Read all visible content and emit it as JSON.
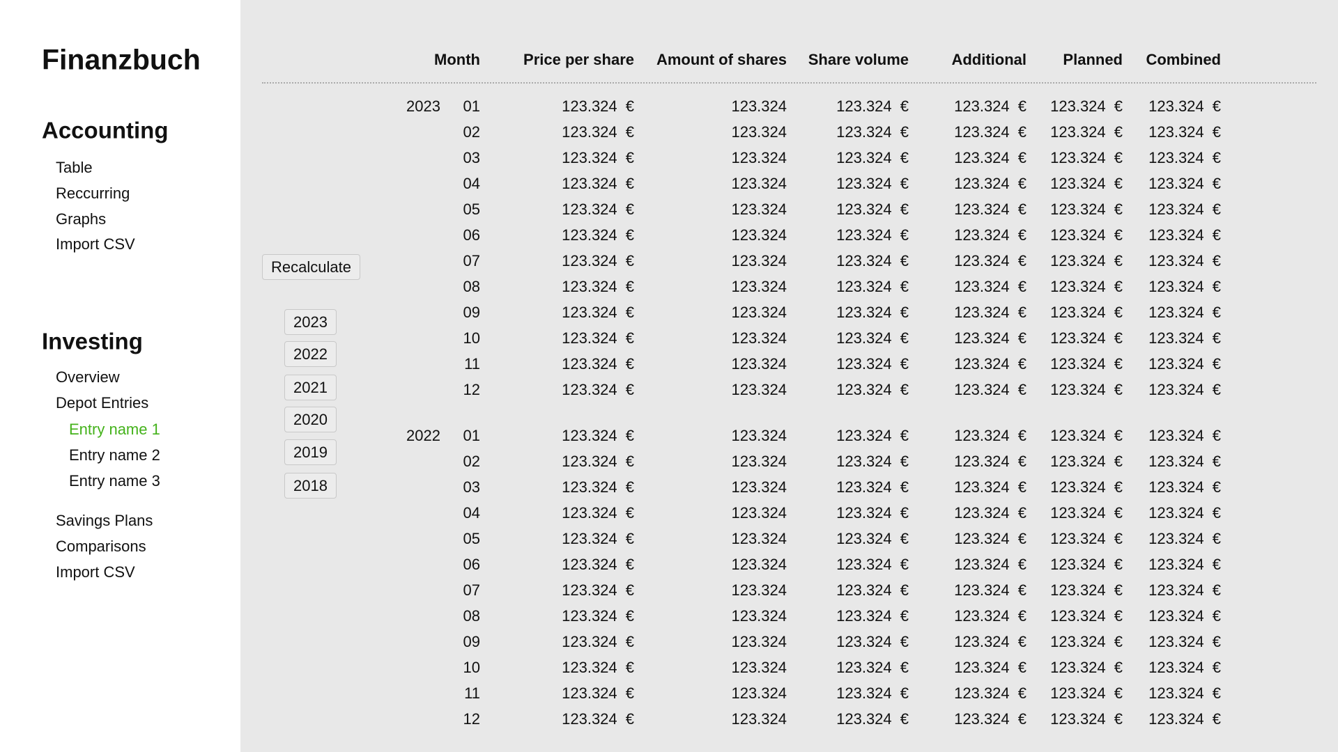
{
  "sidebar": {
    "title": "Finanzbuch",
    "sections": [
      {
        "heading": "Accounting",
        "items": [
          {
            "label": "Table"
          },
          {
            "label": "Reccurring"
          },
          {
            "label": "Graphs"
          },
          {
            "label": "Import CSV"
          }
        ]
      },
      {
        "heading": "Investing",
        "items": [
          {
            "label": "Overview"
          },
          {
            "label": "Depot Entries"
          },
          {
            "label": "Entry name 1"
          },
          {
            "label": "Entry name 2"
          },
          {
            "label": "Entry name 3"
          },
          {
            "label": "Savings Plans"
          },
          {
            "label": "Comparisons"
          },
          {
            "label": "Import CSV"
          }
        ]
      }
    ]
  },
  "controls": {
    "recalculate": "Recalculate",
    "years": [
      "2023",
      "2022",
      "2021",
      "2020",
      "2019",
      "2018"
    ]
  },
  "table": {
    "columns": [
      "Month",
      "Price per share",
      "Amount of shares",
      "Share volume",
      "Additional",
      "Planned",
      "Combined"
    ],
    "groups": [
      {
        "year": "2023",
        "rows": [
          {
            "month": "01",
            "cells": [
              "123.324 €",
              "123.324",
              "123.324 €",
              "123.324 €",
              "123.324 €",
              "123.324 €"
            ]
          },
          {
            "month": "02",
            "cells": [
              "123.324 €",
              "123.324",
              "123.324 €",
              "123.324 €",
              "123.324 €",
              "123.324 €"
            ]
          },
          {
            "month": "03",
            "cells": [
              "123.324 €",
              "123.324",
              "123.324 €",
              "123.324 €",
              "123.324 €",
              "123.324 €"
            ]
          },
          {
            "month": "04",
            "cells": [
              "123.324 €",
              "123.324",
              "123.324 €",
              "123.324 €",
              "123.324 €",
              "123.324 €"
            ]
          },
          {
            "month": "05",
            "cells": [
              "123.324 €",
              "123.324",
              "123.324 €",
              "123.324 €",
              "123.324 €",
              "123.324 €"
            ]
          },
          {
            "month": "06",
            "cells": [
              "123.324 €",
              "123.324",
              "123.324 €",
              "123.324 €",
              "123.324 €",
              "123.324 €"
            ]
          },
          {
            "month": "07",
            "cells": [
              "123.324 €",
              "123.324",
              "123.324 €",
              "123.324 €",
              "123.324 €",
              "123.324 €"
            ]
          },
          {
            "month": "08",
            "cells": [
              "123.324 €",
              "123.324",
              "123.324 €",
              "123.324 €",
              "123.324 €",
              "123.324 €"
            ]
          },
          {
            "month": "09",
            "cells": [
              "123.324 €",
              "123.324",
              "123.324 €",
              "123.324 €",
              "123.324 €",
              "123.324 €"
            ]
          },
          {
            "month": "10",
            "cells": [
              "123.324 €",
              "123.324",
              "123.324 €",
              "123.324 €",
              "123.324 €",
              "123.324 €"
            ]
          },
          {
            "month": "11",
            "cells": [
              "123.324 €",
              "123.324",
              "123.324 €",
              "123.324 €",
              "123.324 €",
              "123.324 €"
            ]
          },
          {
            "month": "12",
            "cells": [
              "123.324 €",
              "123.324",
              "123.324 €",
              "123.324 €",
              "123.324 €",
              "123.324 €"
            ]
          }
        ]
      },
      {
        "year": "2022",
        "rows": [
          {
            "month": "01",
            "cells": [
              "123.324 €",
              "123.324",
              "123.324 €",
              "123.324 €",
              "123.324 €",
              "123.324 €"
            ]
          },
          {
            "month": "02",
            "cells": [
              "123.324 €",
              "123.324",
              "123.324 €",
              "123.324 €",
              "123.324 €",
              "123.324 €"
            ]
          },
          {
            "month": "03",
            "cells": [
              "123.324 €",
              "123.324",
              "123.324 €",
              "123.324 €",
              "123.324 €",
              "123.324 €"
            ]
          },
          {
            "month": "04",
            "cells": [
              "123.324 €",
              "123.324",
              "123.324 €",
              "123.324 €",
              "123.324 €",
              "123.324 €"
            ]
          },
          {
            "month": "05",
            "cells": [
              "123.324 €",
              "123.324",
              "123.324 €",
              "123.324 €",
              "123.324 €",
              "123.324 €"
            ]
          },
          {
            "month": "06",
            "cells": [
              "123.324 €",
              "123.324",
              "123.324 €",
              "123.324 €",
              "123.324 €",
              "123.324 €"
            ]
          },
          {
            "month": "07",
            "cells": [
              "123.324 €",
              "123.324",
              "123.324 €",
              "123.324 €",
              "123.324 €",
              "123.324 €"
            ]
          },
          {
            "month": "08",
            "cells": [
              "123.324 €",
              "123.324",
              "123.324 €",
              "123.324 €",
              "123.324 €",
              "123.324 €"
            ]
          },
          {
            "month": "09",
            "cells": [
              "123.324 €",
              "123.324",
              "123.324 €",
              "123.324 €",
              "123.324 €",
              "123.324 €"
            ]
          },
          {
            "month": "10",
            "cells": [
              "123.324 €",
              "123.324",
              "123.324 €",
              "123.324 €",
              "123.324 €",
              "123.324 €"
            ]
          },
          {
            "month": "11",
            "cells": [
              "123.324 €",
              "123.324",
              "123.324 €",
              "123.324 €",
              "123.324 €",
              "123.324 €"
            ]
          },
          {
            "month": "12",
            "cells": [
              "123.324 €",
              "123.324",
              "123.324 €",
              "123.324 €",
              "123.324 €",
              "123.324 €"
            ]
          }
        ]
      }
    ]
  }
}
